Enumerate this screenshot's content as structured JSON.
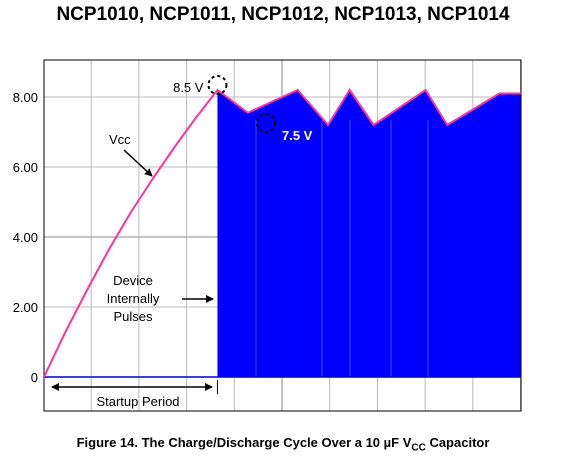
{
  "header": {
    "title": "NCP1010, NCP1011, NCP1012, NCP1013, NCP1014"
  },
  "caption": {
    "prefix": "Figure 14. The Charge/Discharge Cycle Over a 10 µF V",
    "subscript": "CC",
    "suffix": " Capacitor"
  },
  "chart_data": {
    "type": "line",
    "title": "",
    "xlabel": "",
    "ylabel": "",
    "ylim": [
      0,
      9.2
    ],
    "xlim": [
      0,
      11
    ],
    "yticks": [
      "0",
      "2.00",
      "4.00",
      "6.00",
      "8.00"
    ],
    "ytick_values": [
      0,
      2,
      4,
      6,
      8
    ],
    "grid": true,
    "series": [
      {
        "name": "Vcc",
        "color": "#ff3399",
        "x": [
          0,
          0.5,
          1,
          1.5,
          2,
          2.5,
          3,
          3.5,
          4,
          4.7,
          5.85,
          6.55,
          7.05,
          7.6,
          8.8,
          9.3,
          10.5,
          11
        ],
        "y": [
          0,
          1.3,
          2.5,
          3.65,
          4.7,
          5.65,
          6.55,
          7.4,
          8.2,
          7.55,
          8.2,
          7.2,
          8.2,
          7.2,
          8.2,
          7.2,
          8.1,
          8.1
        ],
        "fill_from_x": 4,
        "fill_color": "#0000ff"
      }
    ],
    "annotations": {
      "peak_label": "8.5 V",
      "valley_label": "7.5 V",
      "vcc_label": "Vcc",
      "device_label": [
        "Device",
        "Internally",
        "Pulses"
      ],
      "startup_label": "Startup Period"
    }
  }
}
